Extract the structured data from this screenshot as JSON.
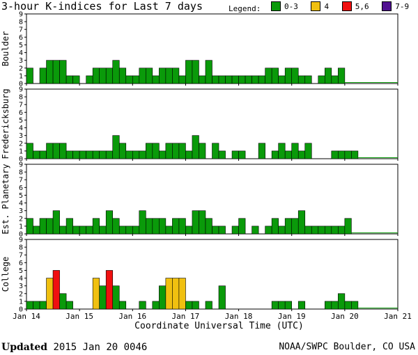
{
  "header": {
    "title": "3-hour K-indices for Last 7 days",
    "legend_label": "Legend:",
    "legend": [
      {
        "label": "0-3",
        "color": "#0a9a0a"
      },
      {
        "label": "4",
        "color": "#f0c010"
      },
      {
        "label": "5,6",
        "color": "#f01010"
      },
      {
        "label": "7-9",
        "color": "#501090"
      }
    ]
  },
  "footer": {
    "updated_label": "Updated",
    "updated_value": "2015 Jan 20 0046",
    "credit": "NOAA/SWPC Boulder, CO USA"
  },
  "chart_data": {
    "type": "bar",
    "xlabel": "Coordinate Universal Time (UTC)",
    "x_tick_labels": [
      "Jan 14",
      "Jan 15",
      "Jan 16",
      "Jan 17",
      "Jan 18",
      "Jan 19",
      "Jan 20",
      "Jan 21"
    ],
    "ylim": [
      0,
      9
    ],
    "y_ticks": [
      "0",
      "1",
      "2",
      "3",
      "4",
      "5",
      "6",
      "7",
      "8",
      "9"
    ],
    "bins_per_day": 8,
    "color_scale": {
      "low": "#0a9a0a",
      "k4": "#f0c010",
      "k56": "#f01010",
      "k79": "#501090"
    },
    "panels": [
      {
        "ylabel": "Boulder",
        "values": [
          2,
          0,
          2,
          3,
          3,
          3,
          1,
          1,
          0,
          1,
          2,
          2,
          2,
          3,
          2,
          1,
          1,
          2,
          2,
          1,
          2,
          2,
          2,
          1,
          3,
          3,
          1,
          3,
          1,
          1,
          1,
          1,
          1,
          1,
          1,
          1,
          2,
          2,
          1,
          2,
          2,
          1,
          1,
          0,
          1,
          2,
          1,
          2
        ]
      },
      {
        "ylabel": "Fredericksburg",
        "values": [
          2,
          1,
          1,
          2,
          2,
          2,
          1,
          1,
          1,
          1,
          1,
          1,
          1,
          3,
          2,
          1,
          1,
          1,
          2,
          2,
          1,
          2,
          2,
          2,
          1,
          3,
          2,
          0,
          2,
          1,
          0,
          1,
          1,
          0,
          0,
          2,
          0,
          1,
          2,
          1,
          2,
          1,
          2,
          0,
          0,
          0,
          1,
          1,
          1,
          1
        ]
      },
      {
        "ylabel": "Est. Planetary",
        "values": [
          2,
          1,
          2,
          2,
          3,
          1,
          2,
          1,
          1,
          1,
          2,
          1,
          3,
          2,
          1,
          1,
          1,
          3,
          2,
          2,
          2,
          1,
          2,
          2,
          1,
          3,
          3,
          2,
          1,
          1,
          0,
          1,
          2,
          0,
          1,
          0,
          1,
          2,
          1,
          2,
          2,
          3,
          1,
          1,
          1,
          1,
          1,
          1,
          2
        ]
      },
      {
        "ylabel": "College",
        "values": [
          1,
          1,
          1,
          4,
          5,
          2,
          1,
          0,
          0,
          0,
          4,
          3,
          5,
          3,
          1,
          0,
          0,
          1,
          0,
          1,
          3,
          4,
          4,
          4,
          1,
          1,
          0,
          1,
          0,
          3,
          0,
          0,
          0,
          0,
          0,
          0,
          0,
          1,
          1,
          1,
          0,
          1,
          0,
          0,
          0,
          1,
          1,
          2,
          1,
          1
        ]
      }
    ]
  }
}
